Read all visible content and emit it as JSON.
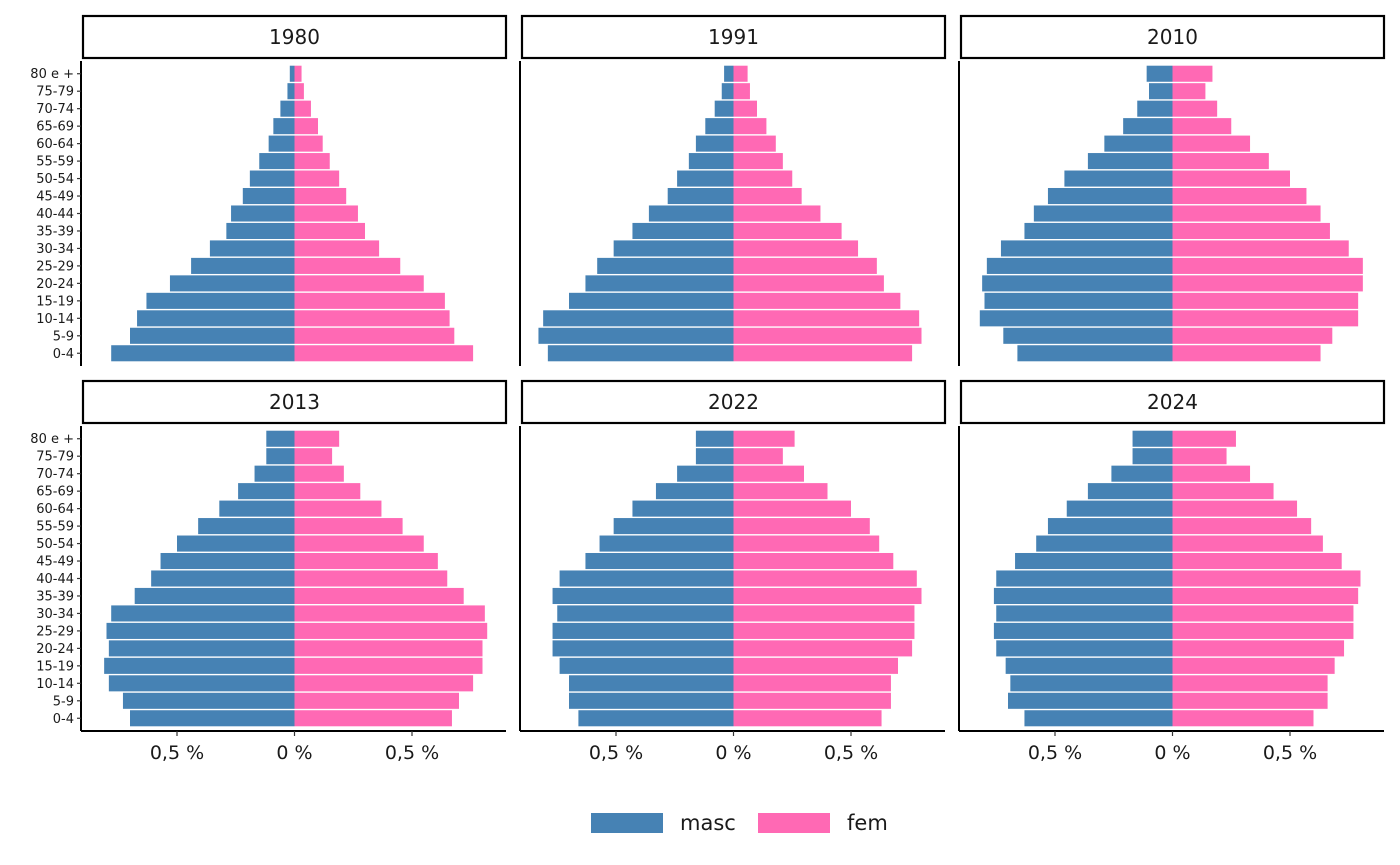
{
  "chart_data": {
    "type": "bar",
    "orientation": "horizontal",
    "subtype": "population-pyramid",
    "facets": [
      "1980",
      "1991",
      "2010",
      "2013",
      "2022",
      "2024"
    ],
    "categories": [
      "0-4",
      "5-9",
      "10-14",
      "15-19",
      "20-24",
      "25-29",
      "30-34",
      "35-39",
      "40-44",
      "45-49",
      "50-54",
      "55-59",
      "60-64",
      "65-69",
      "70-74",
      "75-79",
      "80 e +"
    ],
    "x_tick_labels": [
      "0,5 %",
      "0 %",
      "0,5 %"
    ],
    "x_tick_values": [
      -0.5,
      0,
      0.5
    ],
    "xlim": [
      -0.9,
      0.9
    ],
    "legend": {
      "position": "bottom",
      "entries": [
        "masc",
        "fem"
      ]
    },
    "colors": {
      "masc": "#4682B4",
      "fem": "#FF69B4"
    },
    "grid": false,
    "panels": [
      {
        "facet": "1980",
        "masc": [
          0.78,
          0.7,
          0.67,
          0.63,
          0.53,
          0.44,
          0.36,
          0.29,
          0.27,
          0.22,
          0.19,
          0.15,
          0.11,
          0.09,
          0.06,
          0.03,
          0.02
        ],
        "fem": [
          0.76,
          0.68,
          0.66,
          0.64,
          0.55,
          0.45,
          0.36,
          0.3,
          0.27,
          0.22,
          0.19,
          0.15,
          0.12,
          0.1,
          0.07,
          0.04,
          0.03
        ]
      },
      {
        "facet": "1991",
        "masc": [
          0.79,
          0.83,
          0.81,
          0.7,
          0.63,
          0.58,
          0.51,
          0.43,
          0.36,
          0.28,
          0.24,
          0.19,
          0.16,
          0.12,
          0.08,
          0.05,
          0.04
        ],
        "fem": [
          0.76,
          0.8,
          0.79,
          0.71,
          0.64,
          0.61,
          0.53,
          0.46,
          0.37,
          0.29,
          0.25,
          0.21,
          0.18,
          0.14,
          0.1,
          0.07,
          0.06
        ]
      },
      {
        "facet": "2010",
        "masc": [
          0.66,
          0.72,
          0.82,
          0.8,
          0.81,
          0.79,
          0.73,
          0.63,
          0.59,
          0.53,
          0.46,
          0.36,
          0.29,
          0.21,
          0.15,
          0.1,
          0.11
        ],
        "fem": [
          0.63,
          0.68,
          0.79,
          0.79,
          0.81,
          0.81,
          0.75,
          0.67,
          0.63,
          0.57,
          0.5,
          0.41,
          0.33,
          0.25,
          0.19,
          0.14,
          0.17
        ]
      },
      {
        "facet": "2013",
        "masc": [
          0.7,
          0.73,
          0.79,
          0.81,
          0.79,
          0.8,
          0.78,
          0.68,
          0.61,
          0.57,
          0.5,
          0.41,
          0.32,
          0.24,
          0.17,
          0.12,
          0.12
        ],
        "fem": [
          0.67,
          0.7,
          0.76,
          0.8,
          0.8,
          0.82,
          0.81,
          0.72,
          0.65,
          0.61,
          0.55,
          0.46,
          0.37,
          0.28,
          0.21,
          0.16,
          0.19
        ]
      },
      {
        "facet": "2022",
        "masc": [
          0.66,
          0.7,
          0.7,
          0.74,
          0.77,
          0.77,
          0.75,
          0.77,
          0.74,
          0.63,
          0.57,
          0.51,
          0.43,
          0.33,
          0.24,
          0.16,
          0.16
        ],
        "fem": [
          0.63,
          0.67,
          0.67,
          0.7,
          0.76,
          0.77,
          0.77,
          0.8,
          0.78,
          0.68,
          0.62,
          0.58,
          0.5,
          0.4,
          0.3,
          0.21,
          0.26
        ]
      },
      {
        "facet": "2024",
        "masc": [
          0.63,
          0.7,
          0.69,
          0.71,
          0.75,
          0.76,
          0.75,
          0.76,
          0.75,
          0.67,
          0.58,
          0.53,
          0.45,
          0.36,
          0.26,
          0.17,
          0.17
        ],
        "fem": [
          0.6,
          0.66,
          0.66,
          0.69,
          0.73,
          0.77,
          0.77,
          0.79,
          0.8,
          0.72,
          0.64,
          0.59,
          0.53,
          0.43,
          0.33,
          0.23,
          0.27
        ]
      }
    ]
  }
}
